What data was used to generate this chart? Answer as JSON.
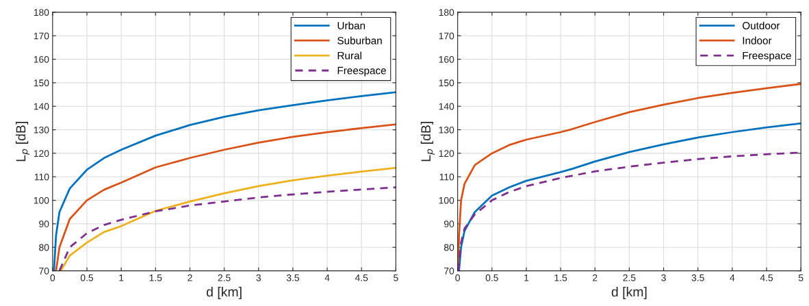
{
  "chart_data": [
    {
      "type": "line",
      "xlabel": "d [km]",
      "ylabel": "L$_{p}$ [dB]",
      "xlim": [
        0,
        5
      ],
      "ylim": [
        70,
        180
      ],
      "xticks": [
        0,
        0.5,
        1,
        1.5,
        2,
        2.5,
        3,
        3.5,
        4,
        4.5,
        5
      ],
      "yticks": [
        70,
        80,
        90,
        100,
        110,
        120,
        130,
        140,
        150,
        160,
        170,
        180
      ],
      "grid": true,
      "legend": "top right",
      "series": [
        {
          "name": "Urban",
          "color": "#0072bd",
          "line_style": "solid",
          "x": [
            0.02,
            0.05,
            0.1,
            0.25,
            0.5,
            0.75,
            1,
            1.5,
            2,
            2.5,
            3,
            3.5,
            4,
            4.5,
            5
          ],
          "values": [
            70,
            85,
            95,
            105,
            113,
            118,
            121.5,
            127.5,
            132,
            135.5,
            138.3,
            140.5,
            142.5,
            144.3,
            146
          ]
        },
        {
          "name": "Suburban",
          "color": "#d95319",
          "line_style": "solid",
          "x": [
            0.05,
            0.1,
            0.25,
            0.5,
            0.75,
            1,
            1.5,
            2,
            2.5,
            3,
            3.5,
            4,
            4.5,
            5
          ],
          "values": [
            70,
            80,
            92,
            100,
            104.5,
            107.5,
            114,
            118,
            121.5,
            124.5,
            127,
            129,
            130.7,
            132.3
          ]
        },
        {
          "name": "Rural",
          "color": "#edb120",
          "line_style": "solid",
          "x": [
            0.12,
            0.25,
            0.5,
            0.75,
            1,
            1.5,
            2,
            2.5,
            3,
            3.5,
            4,
            4.5,
            5
          ],
          "values": [
            70,
            76.5,
            82,
            86.5,
            89,
            95.5,
            99.5,
            103,
            106,
            108.5,
            110.5,
            112.2,
            113.8
          ]
        },
        {
          "name": "Freespace",
          "color": "#7e2f8e",
          "line_style": "dashed",
          "x": [
            0.1,
            0.25,
            0.5,
            0.75,
            1,
            1.5,
            2,
            2.5,
            3,
            3.5,
            4,
            4.5,
            5
          ],
          "values": [
            70,
            80,
            86,
            89.5,
            91.7,
            95.3,
            97.8,
            99.5,
            101.2,
            102.5,
            103.6,
            104.6,
            105.5
          ]
        }
      ]
    },
    {
      "type": "line",
      "xlabel": "d [km]",
      "ylabel": "L$_{p}$ [dB]",
      "xlim": [
        0,
        5
      ],
      "ylim": [
        70,
        180
      ],
      "xticks": [
        0,
        0.5,
        1,
        1.5,
        2,
        2.5,
        3,
        3.5,
        4,
        4.5,
        5
      ],
      "yticks": [
        70,
        80,
        90,
        100,
        110,
        120,
        130,
        140,
        150,
        160,
        170,
        180
      ],
      "grid": true,
      "legend": "top right",
      "series": [
        {
          "name": "Outdoor",
          "color": "#0072bd",
          "line_style": "solid",
          "x": [
            0.02,
            0.05,
            0.1,
            0.25,
            0.5,
            0.75,
            1,
            1.5,
            1.67,
            2,
            2.5,
            3,
            3.5,
            4,
            4.5,
            5
          ],
          "values": [
            70,
            80,
            87,
            95,
            102,
            105.5,
            108.3,
            112,
            113.4,
            116.5,
            120.5,
            123.8,
            126.7,
            129,
            131,
            132.7
          ]
        },
        {
          "name": "Indoor",
          "color": "#d95319",
          "line_style": "solid",
          "x": [
            0.005,
            0.02,
            0.05,
            0.1,
            0.25,
            0.5,
            0.75,
            1,
            1.5,
            1.67,
            2,
            2.5,
            3,
            3.5,
            4,
            4.5,
            5
          ],
          "values": [
            70,
            85,
            100,
            107,
            115,
            120,
            123.5,
            125.8,
            129,
            130.3,
            133.3,
            137.5,
            140.7,
            143.5,
            145.7,
            147.7,
            149.5
          ]
        },
        {
          "name": "Freespace",
          "color": "#7e2f8e",
          "line_style": "dashed",
          "x": [
            0.01,
            0.05,
            0.1,
            0.25,
            0.5,
            0.75,
            1,
            1.5,
            2,
            2.5,
            3,
            3.5,
            4,
            4.5,
            5
          ],
          "values": [
            70,
            82,
            88,
            94,
            100,
            103.5,
            106,
            109.5,
            112.3,
            114.3,
            116,
            117.5,
            118.7,
            119.6,
            120.3
          ]
        }
      ]
    }
  ]
}
